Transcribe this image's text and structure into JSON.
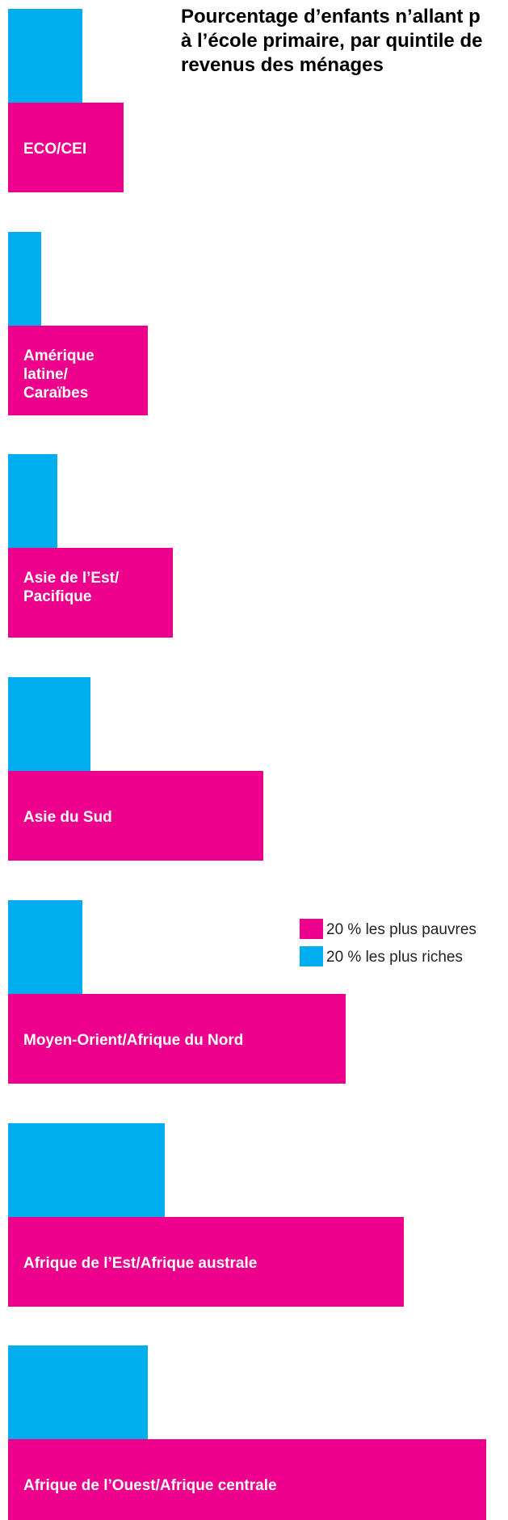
{
  "colors": {
    "poorest": "#ec008c",
    "richest": "#00aeef",
    "background": "#ffffff",
    "title": "#000000",
    "bar_label": "#ffffff"
  },
  "chart_data": {
    "type": "bar",
    "orientation": "horizontal",
    "title": "Pourcentage d’enfants n’allant p\nà l’école primaire, par quintile de\nrevenus des ménages",
    "categories": [
      "ECO/CEI",
      "Amérique\nlatine/\nCaraïbes",
      "Asie de l’Est/\nPacifique",
      "Asie du Sud",
      "Moyen-Orient/Afrique du Nord",
      "Afrique de l’Est/Afrique australe",
      "Afrique de l’Ouest/Afrique centrale"
    ],
    "series": [
      {
        "name": "20 % les plus pauvres",
        "color": "#ec008c",
        "values": [
          14,
          17,
          20,
          31,
          41,
          48,
          58
        ]
      },
      {
        "name": "20 % les plus riches",
        "color": "#00aeef",
        "values": [
          9,
          4,
          6,
          10,
          9,
          19,
          17
        ]
      }
    ],
    "xlim": [
      0,
      60
    ],
    "legend_position": "right",
    "grid": false
  }
}
